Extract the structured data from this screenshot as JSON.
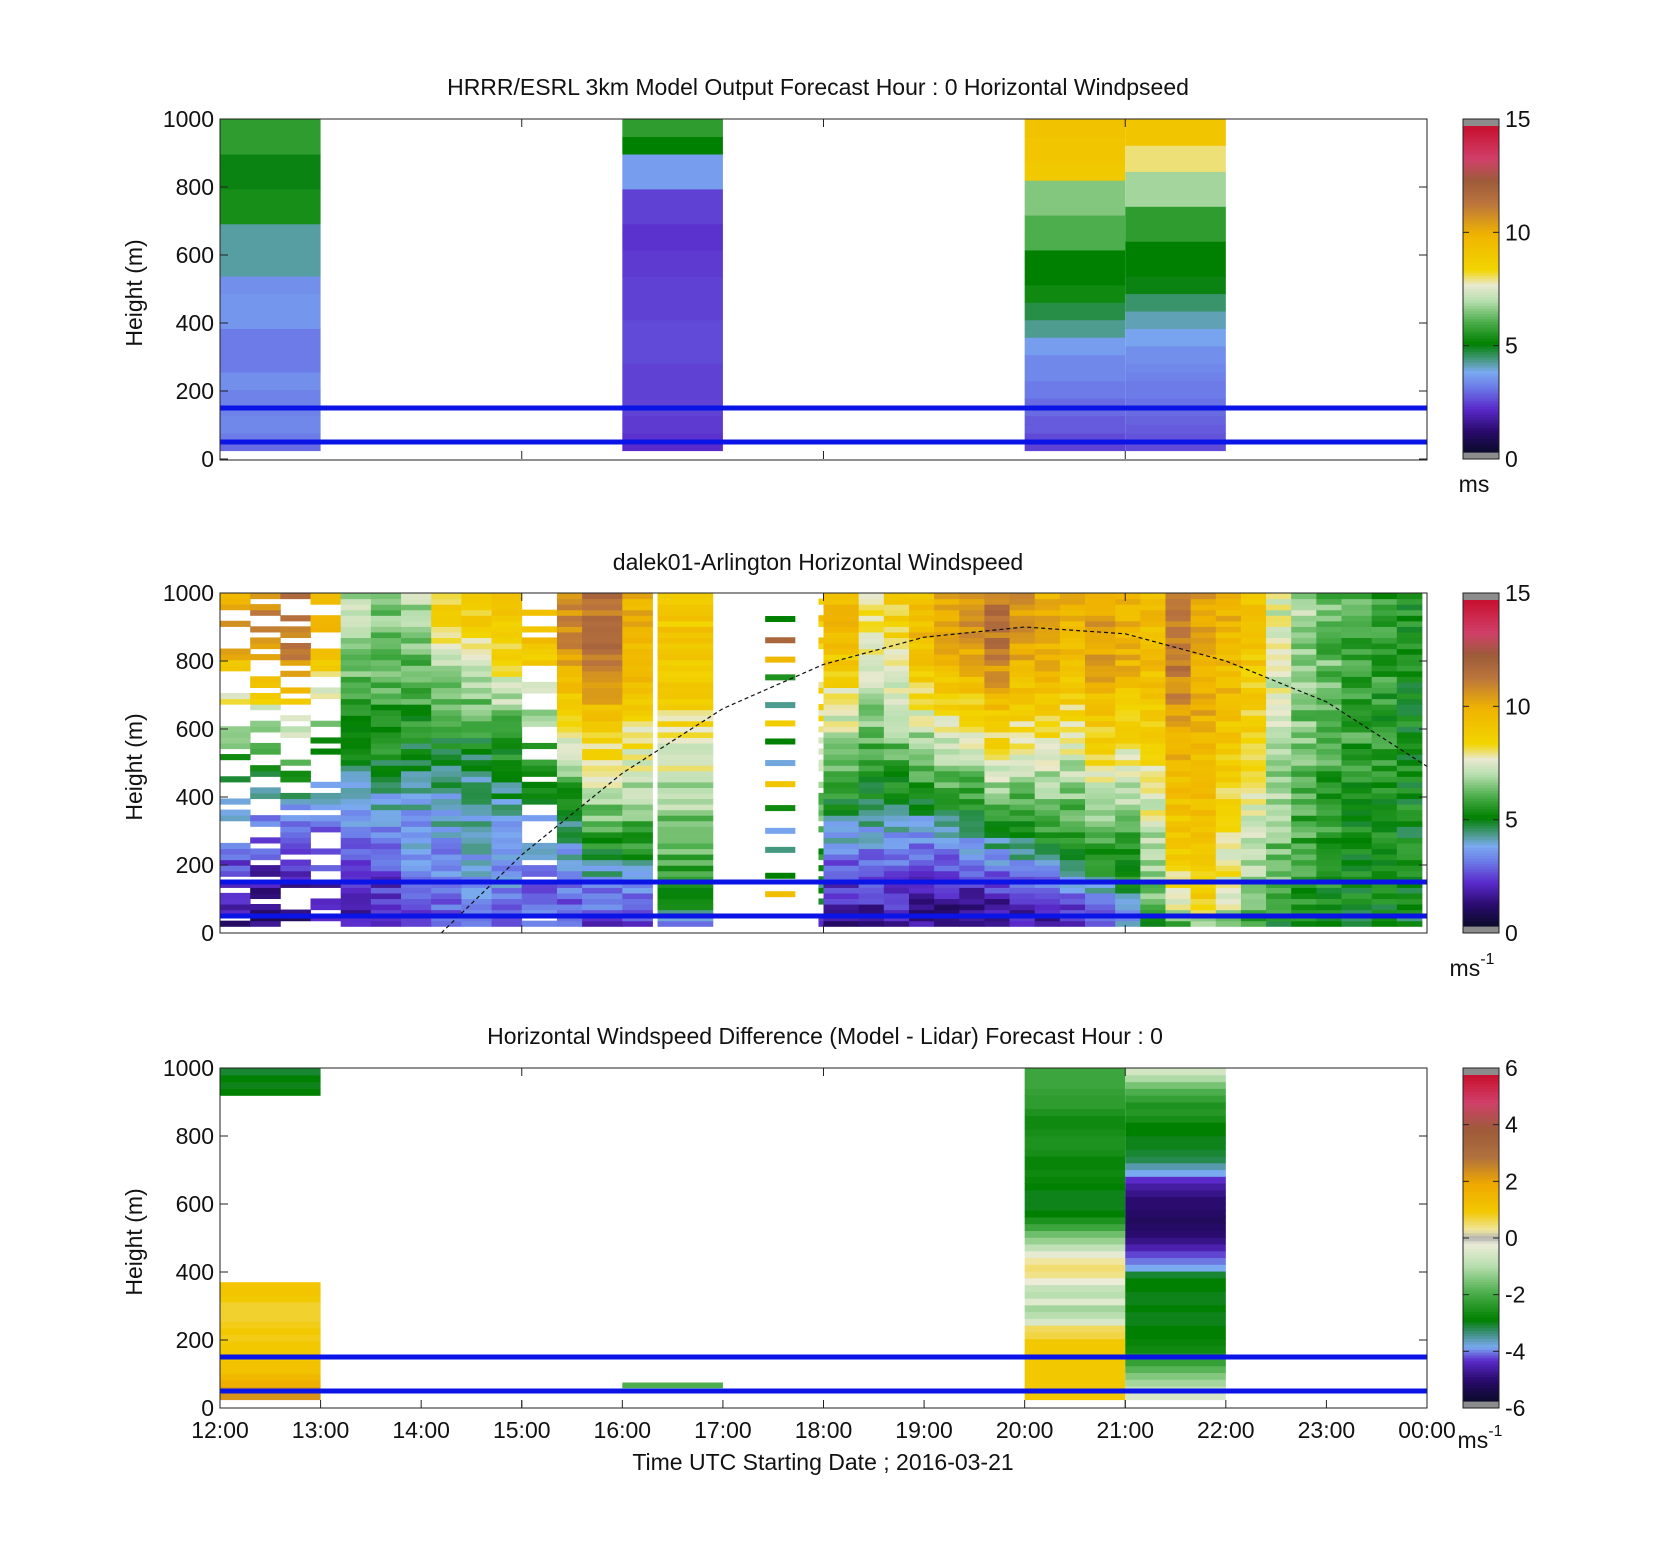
{
  "chart_data": [
    {
      "type": "heatmap",
      "title": "HRRR/ESRL 3km Model Output   Forecast Hour : 0 Horizontal Windpseed",
      "ylabel": "Height (m)",
      "xlabel": "",
      "ylim": [
        0,
        1000
      ],
      "xlim": [
        12,
        24
      ],
      "yticks": [
        "0",
        "200",
        "400",
        "600",
        "800",
        "1000"
      ],
      "colorbar": {
        "ticks": [
          "0",
          "5",
          "10",
          "15"
        ],
        "range": [
          0,
          15
        ],
        "unit": "ms",
        "unit_sup": ""
      },
      "reference_lines_m": [
        50,
        150
      ],
      "columns": [
        {
          "x0": 12,
          "x1": 13,
          "y0": 25,
          "y1": 1000,
          "values": [
            2.8,
            3.0,
            3.2,
            3.2,
            3.1,
            3.1,
            3.1,
            3.3,
            3.3,
            3.0,
            3.0,
            3.0,
            3.0,
            3.0,
            3.4,
            3.4,
            3.4,
            3.4,
            3.3,
            3.3,
            4.1,
            4.1,
            4.1,
            4.1,
            4.1,
            4.1,
            5.3,
            5.3,
            5.3,
            5.3,
            4.9,
            4.9,
            4.9,
            4.9,
            5.6,
            5.6,
            5.6,
            5.6
          ]
        },
        {
          "x0": 16,
          "x1": 17,
          "y0": 25,
          "y1": 1000,
          "values": [
            2.0,
            2.1,
            2.2,
            2.2,
            2.3,
            2.3,
            2.3,
            2.3,
            2.3,
            2.3,
            2.4,
            2.4,
            2.4,
            2.4,
            2.4,
            2.3,
            2.3,
            2.3,
            2.3,
            2.3,
            2.2,
            2.2,
            2.2,
            2.1,
            2.1,
            2.1,
            2.3,
            2.3,
            2.3,
            2.3,
            3.5,
            3.5,
            3.5,
            3.5,
            5.0,
            5.0,
            5.6,
            5.6
          ]
        },
        {
          "x0": 20,
          "x1": 21,
          "y0": 25,
          "y1": 1000,
          "values": [
            2.3,
            2.4,
            2.6,
            2.6,
            2.8,
            2.8,
            3.0,
            3.0,
            3.2,
            3.2,
            3.2,
            3.5,
            3.5,
            4.2,
            4.2,
            4.6,
            4.6,
            5.2,
            5.2,
            5.0,
            5.0,
            5.0,
            5.0,
            6.0,
            6.0,
            6.0,
            6.0,
            6.5,
            6.5,
            6.5,
            6.5,
            9.0,
            9.0,
            9.2,
            9.2,
            9.2,
            9.3,
            9.3
          ]
        },
        {
          "x0": 21,
          "x1": 22,
          "y0": 25,
          "y1": 1000,
          "values": [
            2.4,
            2.5,
            2.6,
            2.7,
            2.8,
            2.9,
            3.0,
            3.0,
            3.1,
            3.2,
            3.3,
            3.3,
            3.6,
            3.6,
            4.0,
            4.0,
            4.4,
            4.4,
            4.9,
            4.9,
            5.0,
            5.0,
            5.0,
            5.0,
            5.6,
            5.6,
            5.6,
            5.6,
            6.8,
            6.8,
            6.8,
            6.8,
            8.0,
            8.0,
            8.0,
            9.2,
            9.2,
            9.2
          ]
        }
      ]
    },
    {
      "type": "heatmap",
      "title": "dalek01-Arlington  Horizontal Windspeed",
      "ylabel": "Height (m)",
      "xlabel": "",
      "ylim": [
        0,
        1000
      ],
      "xlim": [
        12,
        24
      ],
      "yticks": [
        "0",
        "200",
        "400",
        "600",
        "800",
        "1000"
      ],
      "colorbar": {
        "ticks": [
          "0",
          "5",
          "10",
          "15"
        ],
        "range": [
          0,
          15
        ],
        "unit": "ms",
        "unit_sup": "-1"
      },
      "reference_lines_m": [
        50,
        150
      ],
      "overlay_curve": {
        "style": "dashed",
        "peak_time": 20.0,
        "peak_height_m": 900,
        "points": [
          [
            14.2,
            0
          ],
          [
            15,
            230
          ],
          [
            16,
            470
          ],
          [
            17,
            660
          ],
          [
            18,
            790
          ],
          [
            19,
            870
          ],
          [
            20,
            900
          ],
          [
            21,
            880
          ],
          [
            22,
            800
          ],
          [
            23,
            680
          ],
          [
            24,
            490
          ]
        ]
      },
      "gaps": [
        [
          17.4,
          17.75
        ],
        [
          18.55,
          18.6
        ]
      ],
      "column_profiles": [
        {
          "x0": 12.0,
          "x1": 12.3,
          "low": 1.5,
          "mid": 4.0,
          "high": 10.5,
          "break_m": 420,
          "sparse": true
        },
        {
          "x0": 12.3,
          "x1": 12.6,
          "low": 1.2,
          "mid": 3.5,
          "high": 11.0,
          "break_m": 400,
          "sparse": true
        },
        {
          "x0": 12.6,
          "x1": 12.9,
          "low": 1.0,
          "mid": 3.0,
          "high": 11.5,
          "break_m": 350,
          "sparse": true
        },
        {
          "x0": 12.9,
          "x1": 13.2,
          "low": 1.3,
          "mid": 3.5,
          "high": 9.5,
          "break_m": 380,
          "sparse": true
        },
        {
          "x0": 13.2,
          "x1": 13.5,
          "low": 1.5,
          "mid": 5.2,
          "high": 7.0,
          "break_m": 550,
          "sparse": false
        },
        {
          "x0": 13.5,
          "x1": 13.8,
          "low": 1.6,
          "mid": 5.0,
          "high": 6.5,
          "break_m": 500,
          "sparse": false
        },
        {
          "x0": 13.8,
          "x1": 14.1,
          "low": 2.5,
          "mid": 5.0,
          "high": 6.8,
          "break_m": 550,
          "sparse": false
        },
        {
          "x0": 14.1,
          "x1": 14.4,
          "low": 2.6,
          "mid": 5.4,
          "high": 8.5,
          "break_m": 600,
          "sparse": false
        },
        {
          "x0": 14.4,
          "x1": 14.7,
          "low": 3.0,
          "mid": 5.0,
          "high": 8.8,
          "break_m": 550,
          "sparse": false
        },
        {
          "x0": 14.7,
          "x1": 15.0,
          "low": 2.9,
          "mid": 5.0,
          "high": 9.0,
          "break_m": 500,
          "sparse": false
        },
        {
          "x0": 15.0,
          "x1": 15.35,
          "low": 2.6,
          "mid": 5.0,
          "high": 9.5,
          "break_m": 450,
          "sparse": true
        },
        {
          "x0": 15.35,
          "x1": 15.6,
          "low": 2.4,
          "mid": 5.2,
          "high": 11.0,
          "break_m": 380,
          "sparse": false
        },
        {
          "x0": 15.6,
          "x1": 16.0,
          "low": 2.2,
          "mid": 5.6,
          "high": 11.5,
          "break_m": 280,
          "sparse": false
        },
        {
          "x0": 16.0,
          "x1": 16.3,
          "low": 2.2,
          "mid": 5.5,
          "high": 10.0,
          "break_m": 250,
          "sparse": false
        },
        {
          "x0": 16.35,
          "x1": 16.9,
          "low": 2.6,
          "mid": 5.2,
          "high": 9.0,
          "break_m": 80,
          "sparse": false
        },
        {
          "x0": 17.95,
          "x1": 18.0,
          "low": 1.0,
          "mid": 4.5,
          "high": 9.0,
          "break_m": 100,
          "sparse": true
        },
        {
          "x0": 18.0,
          "x1": 18.35,
          "low": 1.4,
          "mid": 5.6,
          "high": 9.5,
          "break_m": 420,
          "sparse": false
        },
        {
          "x0": 18.35,
          "x1": 18.6,
          "low": 1.5,
          "mid": 5.4,
          "high": 8.2,
          "break_m": 450,
          "sparse": false
        },
        {
          "x0": 18.6,
          "x1": 18.85,
          "low": 1.6,
          "mid": 5.3,
          "high": 8.5,
          "break_m": 430,
          "sparse": false
        },
        {
          "x0": 18.85,
          "x1": 19.1,
          "low": 1.1,
          "mid": 5.4,
          "high": 9.6,
          "break_m": 420,
          "sparse": false
        },
        {
          "x0": 19.1,
          "x1": 19.35,
          "low": 1.0,
          "mid": 5.5,
          "high": 10.3,
          "break_m": 400,
          "sparse": false
        },
        {
          "x0": 19.35,
          "x1": 19.6,
          "low": 0.9,
          "mid": 5.2,
          "high": 10.6,
          "break_m": 360,
          "sparse": false
        },
        {
          "x0": 19.6,
          "x1": 19.85,
          "low": 1.0,
          "mid": 5.6,
          "high": 11.5,
          "break_m": 330,
          "sparse": false
        },
        {
          "x0": 19.85,
          "x1": 20.1,
          "low": 1.4,
          "mid": 5.2,
          "high": 10.5,
          "break_m": 300,
          "sparse": false
        },
        {
          "x0": 20.1,
          "x1": 20.35,
          "low": 1.5,
          "mid": 5.5,
          "high": 10.2,
          "break_m": 280,
          "sparse": false
        },
        {
          "x0": 20.35,
          "x1": 20.6,
          "low": 1.8,
          "mid": 5.3,
          "high": 9.8,
          "break_m": 260,
          "sparse": false
        },
        {
          "x0": 20.6,
          "x1": 20.9,
          "low": 2.0,
          "mid": 5.2,
          "high": 10.5,
          "break_m": 180,
          "sparse": false
        },
        {
          "x0": 20.9,
          "x1": 21.15,
          "low": 3.5,
          "mid": 5.0,
          "high": 10.0,
          "break_m": 150,
          "sparse": false
        },
        {
          "x0": 21.15,
          "x1": 21.4,
          "low": 5.2,
          "mid": 6.2,
          "high": 9.5,
          "break_m": 80,
          "sparse": false
        },
        {
          "x0": 21.4,
          "x1": 21.65,
          "low": 5.6,
          "mid": 7.8,
          "high": 11.3,
          "break_m": 80,
          "sparse": false
        },
        {
          "x0": 21.65,
          "x1": 21.9,
          "low": 5.8,
          "mid": 8.8,
          "high": 10.3,
          "break_m": 80,
          "sparse": false
        },
        {
          "x0": 21.9,
          "x1": 22.15,
          "low": 5.4,
          "mid": 7.5,
          "high": 9.8,
          "break_m": 80,
          "sparse": false
        },
        {
          "x0": 22.15,
          "x1": 22.4,
          "low": 5.2,
          "mid": 6.5,
          "high": 9.0,
          "break_m": 80,
          "sparse": false
        },
        {
          "x0": 22.4,
          "x1": 22.65,
          "low": 5.0,
          "mid": 6.0,
          "high": 7.5,
          "break_m": 80,
          "sparse": false
        },
        {
          "x0": 22.65,
          "x1": 22.9,
          "low": 5.0,
          "mid": 5.4,
          "high": 6.8,
          "break_m": 80,
          "sparse": false
        },
        {
          "x0": 22.9,
          "x1": 23.15,
          "low": 4.9,
          "mid": 5.3,
          "high": 6.2,
          "break_m": 80,
          "sparse": false
        },
        {
          "x0": 23.15,
          "x1": 23.45,
          "low": 4.7,
          "mid": 5.1,
          "high": 5.9,
          "break_m": 80,
          "sparse": false
        },
        {
          "x0": 23.45,
          "x1": 23.7,
          "low": 4.8,
          "mid": 5.2,
          "high": 5.6,
          "break_m": 80,
          "sparse": false
        },
        {
          "x0": 23.7,
          "x1": 23.95,
          "low": 4.9,
          "mid": 5.0,
          "high": 5.3,
          "break_m": 80,
          "sparse": false
        }
      ]
    },
    {
      "type": "heatmap",
      "title": "Horizontal Windspeed Difference (Model - Lidar) Forecast Hour : 0",
      "ylabel": "Height (m)",
      "xlabel": "Time UTC  Starting Date ; 2016-03-21",
      "ylim": [
        0,
        1000
      ],
      "xlim": [
        12,
        24
      ],
      "yticks": [
        "0",
        "200",
        "400",
        "600",
        "800",
        "1000"
      ],
      "xticks": [
        "12:00",
        "13:00",
        "14:00",
        "15:00",
        "16:00",
        "17:00",
        "18:00",
        "19:00",
        "20:00",
        "21:00",
        "22:00",
        "23:00",
        "00:00"
      ],
      "colorbar": {
        "ticks": [
          "-6",
          "-4",
          "-2",
          "0",
          "2",
          "4",
          "6"
        ],
        "range": [
          -6,
          6
        ],
        "unit": "ms",
        "unit_sup": "-1"
      },
      "reference_lines_m": [
        50,
        150
      ],
      "columns": [
        {
          "x0": 12,
          "x1": 13,
          "y0": 25,
          "y1": 370,
          "values": [
            2.4,
            2.2,
            1.8,
            1.5,
            1.2,
            1.2,
            1.0,
            1.0,
            1.0,
            0.9,
            1.0,
            0.9,
            0.8,
            0.8,
            0.8,
            1.0,
            1.1,
            1.1
          ]
        },
        {
          "x0": 12,
          "x1": 13,
          "y0": 920,
          "y1": 1000,
          "values": [
            -3.0,
            -3.1,
            -3.0,
            -3.2
          ]
        },
        {
          "x0": 16,
          "x1": 17,
          "y0": 60,
          "y1": 75,
          "values": [
            -2.0
          ]
        },
        {
          "x0": 20,
          "x1": 21,
          "y0": 25,
          "y1": 1000,
          "values": [
            1.0,
            1.0,
            1.0,
            1.0,
            1.0,
            1.0,
            1.0,
            1.0,
            1.0,
            0.7,
            0.6,
            -0.5,
            -1.0,
            -1.2,
            -0.4,
            -1.0,
            -0.8,
            -0.2,
            0.4,
            0.5,
            0.3,
            -0.3,
            -0.9,
            -1.3,
            -1.7,
            -2.2,
            -2.6,
            -3.0,
            -3.1,
            -3.1,
            -3.1,
            -3.0,
            -2.9,
            -2.8,
            -2.9,
            -2.9,
            -2.7,
            -2.6,
            -2.6,
            -2.7,
            -2.8,
            -2.8,
            -2.6,
            -2.4,
            -2.4,
            -2.3,
            -2.2,
            -2.2,
            -2.2
          ]
        },
        {
          "x0": 21,
          "x1": 22,
          "y0": 25,
          "y1": 1000,
          "values": [
            -0.5,
            -0.8,
            -1.2,
            -1.5,
            -1.9,
            -2.3,
            -2.6,
            -2.8,
            -2.9,
            -3.0,
            -3.0,
            -3.1,
            -3.1,
            -3.0,
            -3.1,
            -3.1,
            -3.0,
            -3.0,
            -3.2,
            -4.0,
            -4.2,
            -4.4,
            -4.7,
            -5.0,
            -5.2,
            -5.3,
            -5.4,
            -5.3,
            -5.2,
            -5.2,
            -5.0,
            -4.8,
            -4.5,
            -4.0,
            -3.7,
            -3.3,
            -3.2,
            -3.1,
            -3.1,
            -3.0,
            -3.0,
            -2.7,
            -2.5,
            -2.6,
            -2.3,
            -2.0,
            -1.6,
            -1.1,
            -0.6
          ]
        }
      ]
    }
  ]
}
